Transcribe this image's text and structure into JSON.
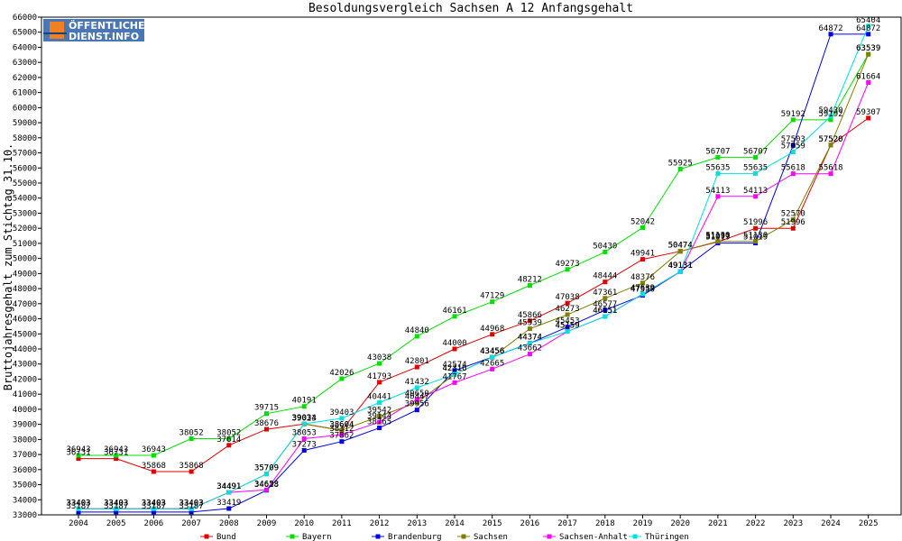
{
  "chart_data": {
    "type": "line",
    "title": "Besoldungsvergleich Sachsen A 12 Anfangsgehalt",
    "xlabel": "",
    "ylabel": "Bruttojahresgehalt zum Stichtag 31.10.",
    "ylim": [
      33000,
      66000
    ],
    "yticks": [
      33000,
      34000,
      35000,
      36000,
      37000,
      38000,
      39000,
      40000,
      41000,
      42000,
      43000,
      44000,
      45000,
      46000,
      47000,
      48000,
      49000,
      50000,
      51000,
      52000,
      53000,
      54000,
      55000,
      56000,
      57000,
      58000,
      59000,
      60000,
      61000,
      62000,
      63000,
      64000,
      65000,
      66000
    ],
    "x": [
      "2004",
      "2005",
      "2006",
      "2007",
      "2008",
      "2009",
      "2010",
      "2011",
      "2012",
      "2013",
      "2014",
      "2015",
      "2016",
      "2017",
      "2018",
      "2019",
      "2020",
      "2021",
      "2022",
      "2023",
      "2024",
      "2025"
    ],
    "grid": false,
    "legend_position": "bottom",
    "series": [
      {
        "name": "Bund",
        "color": "#e00000",
        "values": [
          36731,
          36731,
          35868,
          35868,
          37614,
          38676,
          39023,
          38604,
          41793,
          42801,
          44000,
          44968,
          45866,
          47038,
          48444,
          49941,
          50474,
          51097,
          51996,
          51996,
          57520,
          59307
        ]
      },
      {
        "name": "Bayern",
        "color": "#00e000",
        "values": [
          36943,
          36943,
          36943,
          38052,
          38052,
          39715,
          40191,
          42026,
          43038,
          44840,
          46161,
          47129,
          48212,
          49273,
          50430,
          52042,
          55925,
          56707,
          56707,
          59192,
          59192,
          63539
        ]
      },
      {
        "name": "Brandenburg",
        "color": "#0000e0",
        "values": [
          33187,
          33187,
          33187,
          33187,
          33419,
          34628,
          37273,
          37862,
          38765,
          39956,
          42574,
          43456,
          44374,
          45453,
          46577,
          47550,
          49131,
          51019,
          51019,
          57503,
          64872,
          64872
        ]
      },
      {
        "name": "Sachsen",
        "color": "#808000",
        "values": [
          33403,
          33403,
          33403,
          33403,
          34491,
          35709,
          39034,
          38604,
          39542,
          40447,
          42316,
          43456,
          45339,
          46273,
          47361,
          48376,
          50474,
          51130,
          51130,
          52570,
          57520,
          63539
        ]
      },
      {
        "name": "Sachsen-Anhalt",
        "color": "#ff00ff",
        "values": [
          33403,
          33403,
          33403,
          33403,
          34491,
          34653,
          38053,
          38312,
          39144,
          40650,
          41767,
          42665,
          43662,
          45159,
          46151,
          47639,
          49131,
          54113,
          54113,
          55618,
          55618,
          61664
        ]
      },
      {
        "name": "Thüringen",
        "color": "#00e0e0",
        "values": [
          33403,
          33403,
          33403,
          33403,
          34491,
          35709,
          39034,
          39403,
          40441,
          41432,
          42316,
          43456,
          44374,
          45159,
          46151,
          47639,
          49131,
          55635,
          55635,
          57059,
          59430,
          65404
        ]
      }
    ]
  },
  "logo": {
    "line1": "ÖFFENTLICHER",
    "line2": "DIENST.INFO",
    "bg_color": "#4a77b4",
    "accent_color": "#f08020"
  }
}
